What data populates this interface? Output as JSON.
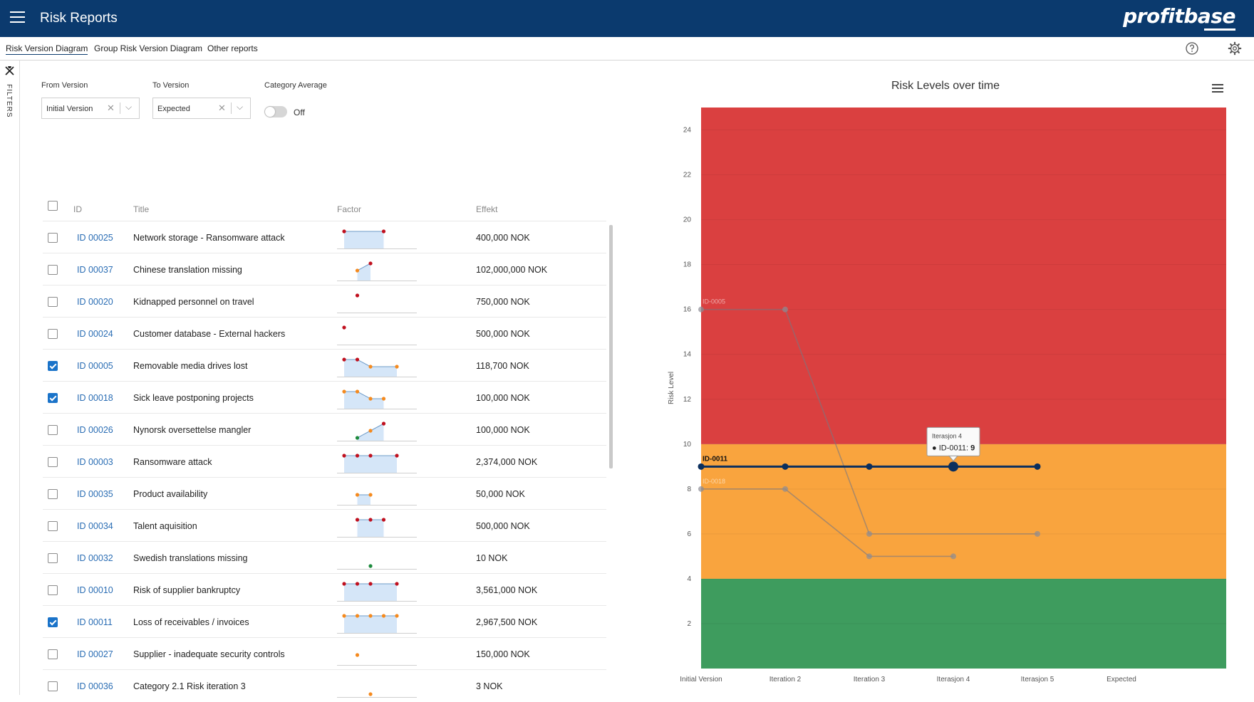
{
  "header": {
    "title": "Risk Reports",
    "logo_text": "profitbase",
    "bg_color": "#0b3a6e"
  },
  "tabs": [
    {
      "label": "Risk Version Diagram",
      "active": true
    },
    {
      "label": "Group Risk Version Diagram",
      "active": false
    },
    {
      "label": "Other reports",
      "active": false
    }
  ],
  "toolbar_icons": [
    "help-icon",
    "gear-icon"
  ],
  "sidebar": {
    "filters_label": "FILTERS",
    "icon": "filter-pin-icon"
  },
  "filters": {
    "from_version": {
      "label": "From Version",
      "value": "Initial Version"
    },
    "to_version": {
      "label": "To Version",
      "value": "Expected"
    },
    "category_average": {
      "label": "Category Average",
      "state": "Off",
      "on": false
    }
  },
  "table": {
    "headers": {
      "id": "ID",
      "title": "Title",
      "factor": "Factor",
      "effekt": "Effekt"
    },
    "rows": [
      {
        "checked": false,
        "id": "ID 00025",
        "title": "Network storage - Ransomware attack",
        "effekt": "400,000 NOK",
        "factor": [
          {
            "v": 2,
            "c": "red"
          },
          null,
          null,
          {
            "v": 2,
            "c": "red"
          }
        ]
      },
      {
        "checked": false,
        "id": "ID 00037",
        "title": "Chinese translation missing",
        "effekt": "102,000,000 NOK",
        "factor": [
          null,
          {
            "v": 1,
            "c": "orange"
          },
          {
            "v": 2,
            "c": "red"
          }
        ]
      },
      {
        "checked": false,
        "id": "ID 00020",
        "title": "Kidnapped personnel on travel",
        "effekt": "750,000 NOK",
        "factor": [
          null,
          {
            "v": 2,
            "c": "red"
          }
        ]
      },
      {
        "checked": false,
        "id": "ID 00024",
        "title": "Customer database - External hackers",
        "effekt": "500,000 NOK",
        "factor": [
          {
            "v": 2,
            "c": "red"
          }
        ]
      },
      {
        "checked": true,
        "id": "ID 00005",
        "title": "Removable media drives lost",
        "effekt": "118,700 NOK",
        "factor": [
          {
            "v": 2,
            "c": "red"
          },
          {
            "v": 2,
            "c": "red"
          },
          {
            "v": 1,
            "c": "orange"
          },
          null,
          {
            "v": 1,
            "c": "orange"
          }
        ]
      },
      {
        "checked": true,
        "id": "ID 00018",
        "title": "Sick leave postponing projects",
        "effekt": "100,000 NOK",
        "factor": [
          {
            "v": 2,
            "c": "orange"
          },
          {
            "v": 2,
            "c": "orange"
          },
          {
            "v": 1,
            "c": "orange"
          },
          {
            "v": 1,
            "c": "orange"
          }
        ]
      },
      {
        "checked": false,
        "id": "ID 00026",
        "title": "Nynorsk oversettelse mangler",
        "effekt": "100,000 NOK",
        "factor": [
          null,
          {
            "v": 0,
            "c": "green"
          },
          {
            "v": 1,
            "c": "orange"
          },
          {
            "v": 2,
            "c": "red"
          }
        ]
      },
      {
        "checked": false,
        "id": "ID 00003",
        "title": "Ransomware attack",
        "effekt": "2,374,000 NOK",
        "factor": [
          {
            "v": 2,
            "c": "red"
          },
          {
            "v": 2,
            "c": "red"
          },
          {
            "v": 2,
            "c": "red"
          },
          null,
          {
            "v": 2,
            "c": "red"
          }
        ]
      },
      {
        "checked": false,
        "id": "ID 00035",
        "title": "Product availability",
        "effekt": "50,000 NOK",
        "factor": [
          null,
          {
            "v": 1,
            "c": "orange"
          },
          {
            "v": 1,
            "c": "orange"
          }
        ]
      },
      {
        "checked": false,
        "id": "ID 00034",
        "title": "Talent aquisition",
        "effekt": "500,000 NOK",
        "factor": [
          null,
          {
            "v": 2,
            "c": "red"
          },
          {
            "v": 2,
            "c": "red"
          },
          {
            "v": 2,
            "c": "red"
          }
        ]
      },
      {
        "checked": false,
        "id": "ID 00032",
        "title": "Swedish translations missing",
        "effekt": "10 NOK",
        "factor": [
          null,
          null,
          {
            "v": 0,
            "c": "green"
          }
        ]
      },
      {
        "checked": false,
        "id": "ID 00010",
        "title": "Risk of supplier bankruptcy",
        "effekt": "3,561,000 NOK",
        "factor": [
          {
            "v": 2,
            "c": "red"
          },
          {
            "v": 2,
            "c": "red"
          },
          {
            "v": 2,
            "c": "red"
          },
          null,
          {
            "v": 2,
            "c": "red"
          }
        ]
      },
      {
        "checked": true,
        "id": "ID 00011",
        "title": "Loss of receivables / invoices",
        "effekt": "2,967,500 NOK",
        "factor": [
          {
            "v": 2,
            "c": "orange"
          },
          {
            "v": 2,
            "c": "orange"
          },
          {
            "v": 2,
            "c": "orange"
          },
          {
            "v": 2,
            "c": "orange"
          },
          {
            "v": 2,
            "c": "orange"
          }
        ]
      },
      {
        "checked": false,
        "id": "ID 00027",
        "title": "Supplier - inadequate security controls",
        "effekt": "150,000 NOK",
        "factor": [
          null,
          {
            "v": 1,
            "c": "orange"
          }
        ]
      },
      {
        "checked": false,
        "id": "ID 00036",
        "title": "Category 2.1 Risk iteration 3",
        "effekt": "3 NOK",
        "factor": [
          null,
          null,
          {
            "v": 0,
            "c": "orange"
          }
        ]
      }
    ]
  },
  "chart_data": {
    "type": "line",
    "title": "Risk Levels over time",
    "ylabel": "Risk Level",
    "xlabel": "",
    "categories": [
      "Initial Version",
      "Iteration 2",
      "Iteration 3",
      "Iterasjon 4",
      "Iterasjon 5",
      "Expected"
    ],
    "ylim": [
      0,
      25
    ],
    "yticks": [
      2,
      4,
      6,
      8,
      10,
      12,
      14,
      16,
      18,
      20,
      22,
      24
    ],
    "bands": [
      {
        "from": 0,
        "to": 4,
        "color": "#3e9c5e"
      },
      {
        "from": 4,
        "to": 10,
        "color": "#f9a43e"
      },
      {
        "from": 10,
        "to": 25,
        "color": "#da4040"
      }
    ],
    "series": [
      {
        "name": "ID-0005",
        "values": [
          16,
          16,
          6,
          null,
          6,
          null
        ],
        "highlight": false
      },
      {
        "name": "ID-0018",
        "values": [
          8,
          8,
          5,
          5,
          null,
          null
        ],
        "highlight": false
      },
      {
        "name": "ID-0011",
        "values": [
          9,
          9,
          9,
          9,
          9,
          null
        ],
        "highlight": true
      }
    ],
    "tooltip": {
      "title": "Iterasjon 4",
      "series": "ID-0011",
      "value": 9
    }
  }
}
